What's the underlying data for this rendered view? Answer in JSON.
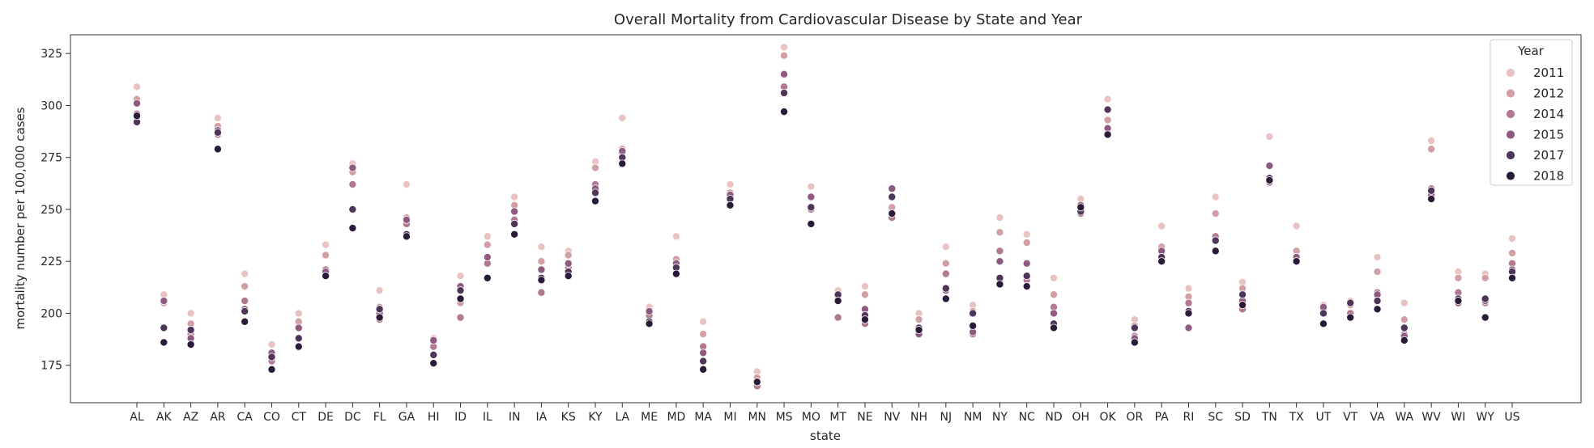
{
  "chart_data": {
    "type": "scatter",
    "title": "Overall Mortality from Cardiovascular Disease by State and Year",
    "xlabel": "state",
    "ylabel": "mortality number per 100,000 cases",
    "ylim": [
      157,
      334
    ],
    "yticks": [
      175,
      200,
      225,
      250,
      275,
      300,
      325
    ],
    "grid": false,
    "legend": {
      "title": "Year",
      "placement": "top-right"
    },
    "categories": [
      "AL",
      "AK",
      "AZ",
      "AR",
      "CA",
      "CO",
      "CT",
      "DE",
      "DC",
      "FL",
      "GA",
      "HI",
      "ID",
      "IL",
      "IN",
      "IA",
      "KS",
      "KY",
      "LA",
      "ME",
      "MD",
      "MA",
      "MI",
      "MN",
      "MS",
      "MO",
      "MT",
      "NE",
      "NV",
      "NH",
      "NJ",
      "NM",
      "NY",
      "NC",
      "ND",
      "OH",
      "OK",
      "OR",
      "PA",
      "RI",
      "SC",
      "SD",
      "TN",
      "TX",
      "UT",
      "VT",
      "VA",
      "WA",
      "WV",
      "WI",
      "WY",
      "US"
    ],
    "series": [
      {
        "name": "2011",
        "color": "#e8c3c1",
        "values": [
          309,
          209,
          200,
          294,
          219,
          185,
          200,
          233,
          272,
          211,
          262,
          188,
          218,
          237,
          256,
          232,
          230,
          273,
          294,
          203,
          237,
          196,
          262,
          172,
          328,
          261,
          211,
          213,
          256,
          200,
          232,
          204,
          246,
          238,
          217,
          255,
          303,
          197,
          242,
          212,
          256,
          215,
          285,
          242,
          204,
          206,
          227,
          205,
          283,
          220,
          219,
          236
        ]
      },
      {
        "name": "2012",
        "color": "#d29fa5",
        "values": [
          303,
          205,
          195,
          290,
          213,
          180,
          196,
          228,
          268,
          203,
          246,
          186,
          205,
          233,
          252,
          225,
          228,
          270,
          279,
          200,
          226,
          190,
          258,
          169,
          324,
          256,
          207,
          209,
          251,
          197,
          224,
          201,
          239,
          234,
          209,
          251,
          293,
          194,
          232,
          208,
          248,
          212,
          271,
          230,
          203,
          204,
          220,
          197,
          279,
          217,
          217,
          229
        ]
      },
      {
        "name": "2014",
        "color": "#b17892",
        "values": [
          296,
          193,
          190,
          286,
          206,
          177,
          193,
          221,
          262,
          197,
          243,
          184,
          198,
          224,
          245,
          210,
          222,
          262,
          277,
          199,
          223,
          184,
          256,
          165,
          309,
          250,
          198,
          195,
          246,
          191,
          219,
          190,
          230,
          216,
          203,
          248,
          287,
          189,
          226,
          205,
          237,
          202,
          263,
          226,
          202,
          200,
          210,
          190,
          260,
          210,
          205,
          224
        ]
      },
      {
        "name": "2015",
        "color": "#8f5a82",
        "values": [
          301,
          206,
          188,
          288,
          202,
          181,
          193,
          220,
          270,
          200,
          245,
          187,
          213,
          227,
          249,
          221,
          224,
          260,
          278,
          201,
          224,
          181,
          257,
          167,
          315,
          256,
          208,
          202,
          260,
          190,
          211,
          191,
          225,
          224,
          200,
          252,
          289,
          188,
          230,
          193,
          235,
          206,
          271,
          227,
          203,
          205,
          209,
          189,
          257,
          205,
          206,
          221
        ]
      },
      {
        "name": "2017",
        "color": "#4f3559",
        "values": [
          292,
          193,
          192,
          287,
          201,
          179,
          188,
          218,
          250,
          202,
          238,
          180,
          211,
          217,
          243,
          217,
          220,
          258,
          275,
          196,
          222,
          177,
          255,
          167,
          306,
          251,
          209,
          199,
          256,
          193,
          212,
          200,
          217,
          218,
          195,
          249,
          298,
          193,
          227,
          201,
          235,
          209,
          265,
          225,
          200,
          205,
          206,
          193,
          259,
          207,
          207,
          220
        ]
      },
      {
        "name": "2018",
        "color": "#2b1b3a",
        "values": [
          295,
          186,
          185,
          279,
          196,
          173,
          184,
          218,
          241,
          198,
          237,
          176,
          207,
          217,
          238,
          216,
          218,
          254,
          272,
          195,
          219,
          173,
          252,
          167,
          297,
          243,
          206,
          197,
          248,
          192,
          207,
          194,
          214,
          213,
          193,
          251,
          286,
          186,
          225,
          200,
          230,
          204,
          264,
          225,
          195,
          198,
          202,
          187,
          255,
          206,
          198,
          217
        ]
      }
    ]
  }
}
